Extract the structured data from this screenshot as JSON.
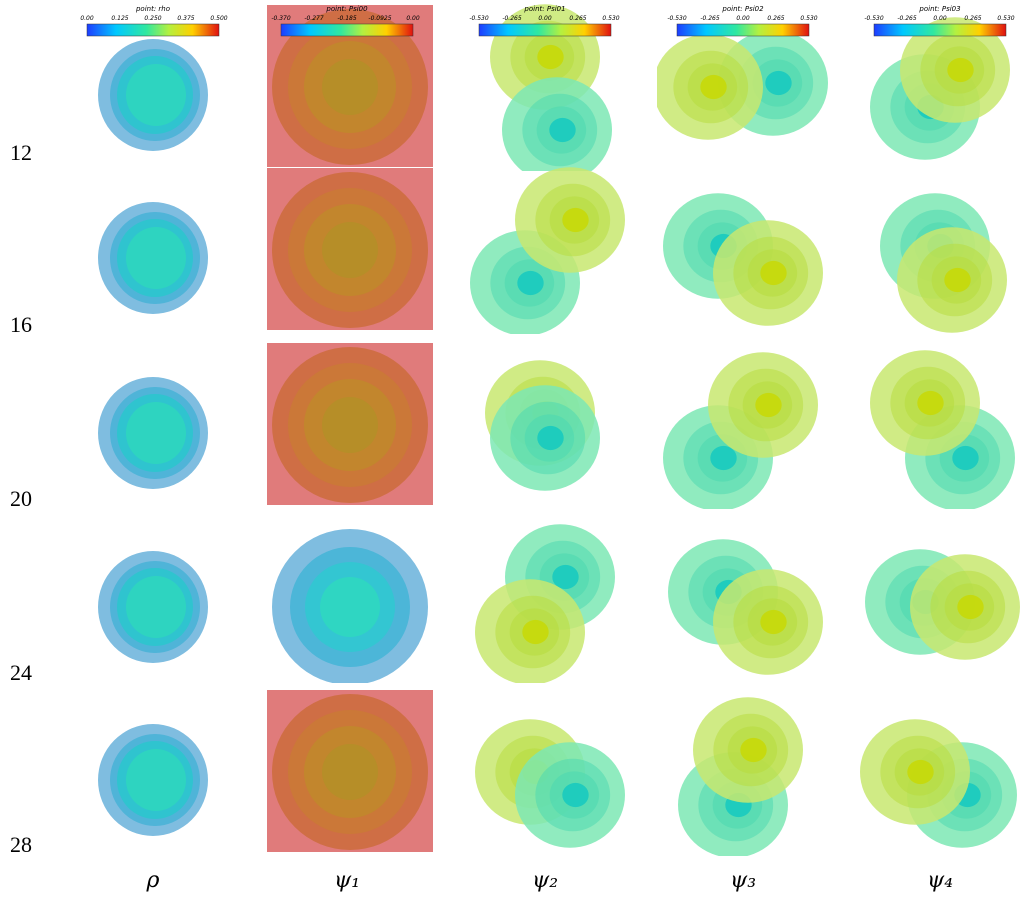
{
  "rows": [
    "12",
    "16",
    "20",
    "24",
    "28"
  ],
  "columns": [
    "ρ",
    "ψ₁",
    "ψ₂",
    "ψ₃",
    "ψ₄"
  ],
  "colorbars": [
    {
      "title": "point: rho",
      "ticks": [
        "0.00",
        "0.125",
        "0.250",
        "0.375",
        "0.500"
      ]
    },
    {
      "title": "point: Psi00",
      "ticks": [
        "-0.370",
        "-0.277",
        "-0.185",
        "-0.0925",
        "0.00"
      ]
    },
    {
      "title": "point: Psi01",
      "ticks": [
        "-0.530",
        "-0.265",
        "0.00",
        "0.265",
        "0.530"
      ]
    },
    {
      "title": "point: Psi02",
      "ticks": [
        "-0.530",
        "-0.265",
        "0.00",
        "0.265",
        "0.530"
      ]
    },
    {
      "title": "point: Psi03",
      "ticks": [
        "-0.530",
        "-0.265",
        "0.00",
        "0.265",
        "0.530"
      ]
    }
  ]
}
